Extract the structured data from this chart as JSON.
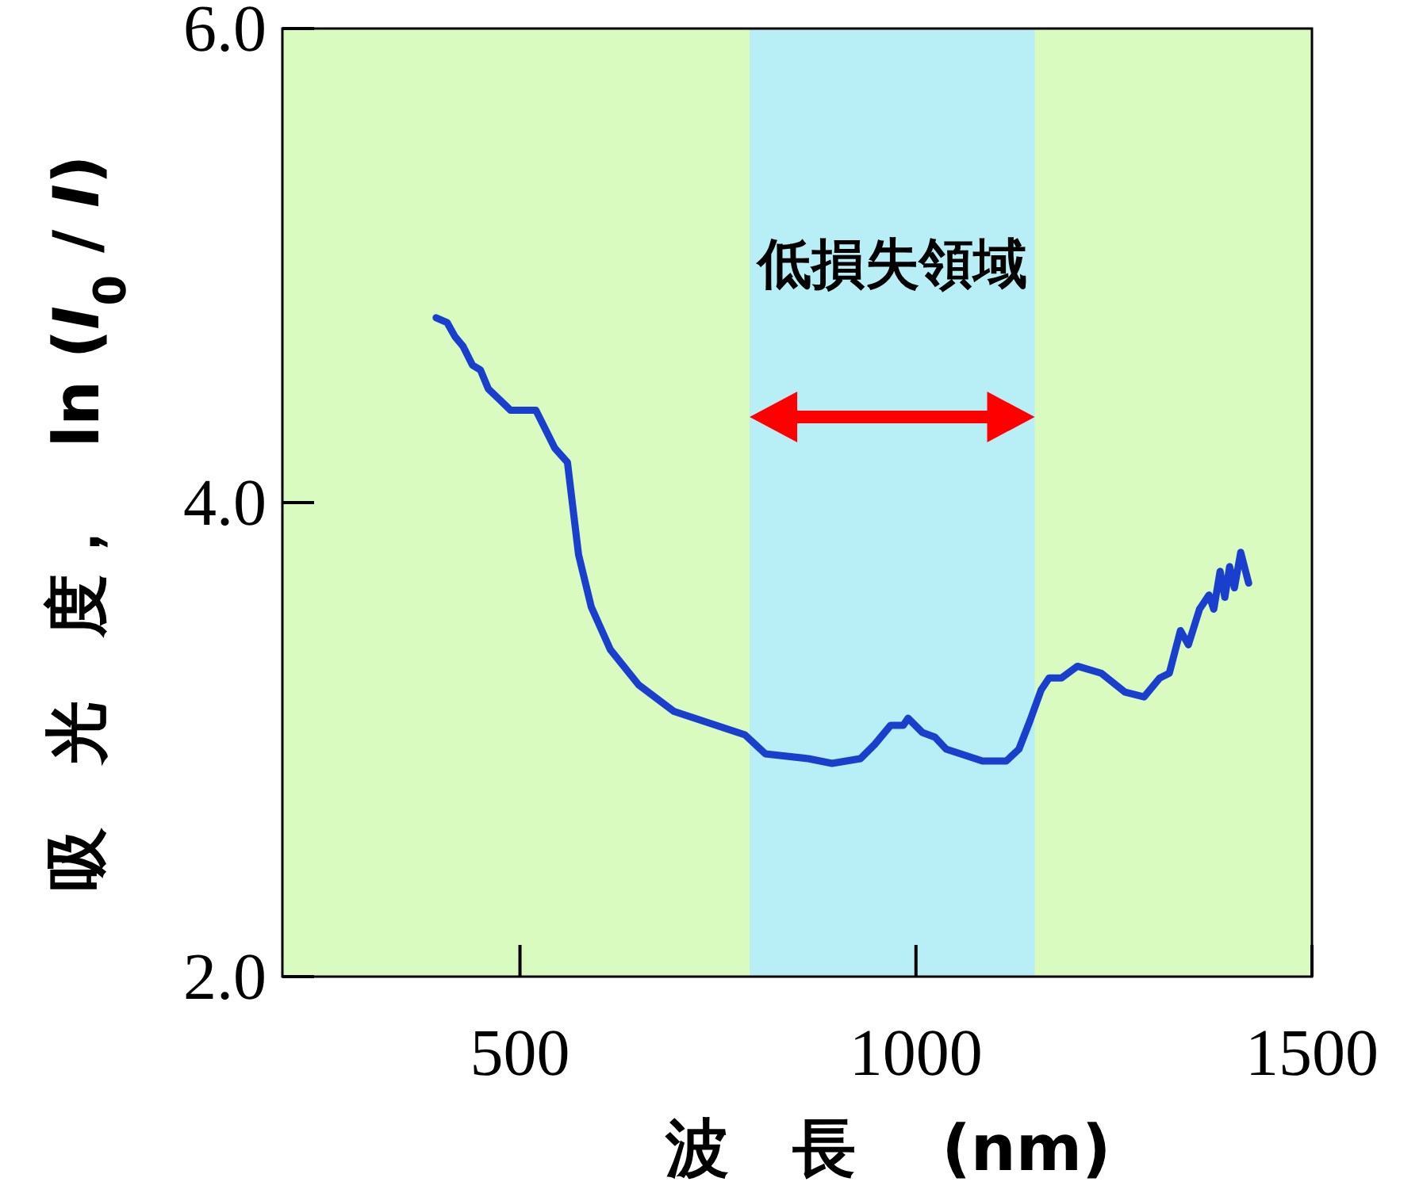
{
  "chart_data": {
    "type": "line",
    "xlabel": "波　長　 (nm)",
    "ylabel": "吸　光　度，　ln (*I*$_{0}$ / *I*)",
    "xlim": [
      200,
      1500
    ],
    "ylim": [
      2,
      6
    ],
    "xticks": [
      500,
      1000,
      1500
    ],
    "yticks": [
      {
        "value": 2,
        "label": "2.0"
      },
      {
        "value": 4,
        "label": "4.0"
      },
      {
        "value": 6,
        "label": "6.0"
      }
    ],
    "bands": [
      {
        "axis": "x",
        "from": 790,
        "to": 1150,
        "label": "低損失領域",
        "color": "#b8eef5"
      }
    ],
    "series": [
      {
        "color": "#1a3fcc",
        "x": [
          394,
          408,
          418,
          428,
          440,
          450,
          460,
          488,
          520,
          544,
          560,
          574,
          590,
          614,
          650,
          694,
          784,
          810,
          864,
          894,
          930,
          948,
          968,
          984,
          990,
          1008,
          1024,
          1038,
          1084,
          1114,
          1130,
          1144,
          1158,
          1168,
          1184,
          1204,
          1234,
          1264,
          1288,
          1308,
          1320,
          1334,
          1344,
          1358,
          1370,
          1376,
          1384,
          1390,
          1396,
          1402,
          1410,
          1420
        ],
        "values": [
          4.78,
          4.76,
          4.7,
          4.66,
          4.58,
          4.56,
          4.48,
          4.39,
          4.39,
          4.23,
          4.17,
          3.78,
          3.56,
          3.38,
          3.23,
          3.12,
          3.02,
          2.94,
          2.92,
          2.9,
          2.92,
          2.98,
          3.06,
          3.06,
          3.09,
          3.03,
          3.01,
          2.96,
          2.91,
          2.91,
          2.96,
          3.08,
          3.21,
          3.26,
          3.26,
          3.31,
          3.28,
          3.2,
          3.18,
          3.26,
          3.28,
          3.46,
          3.4,
          3.55,
          3.61,
          3.55,
          3.71,
          3.6,
          3.73,
          3.64,
          3.79,
          3.66
        ]
      }
    ]
  }
}
